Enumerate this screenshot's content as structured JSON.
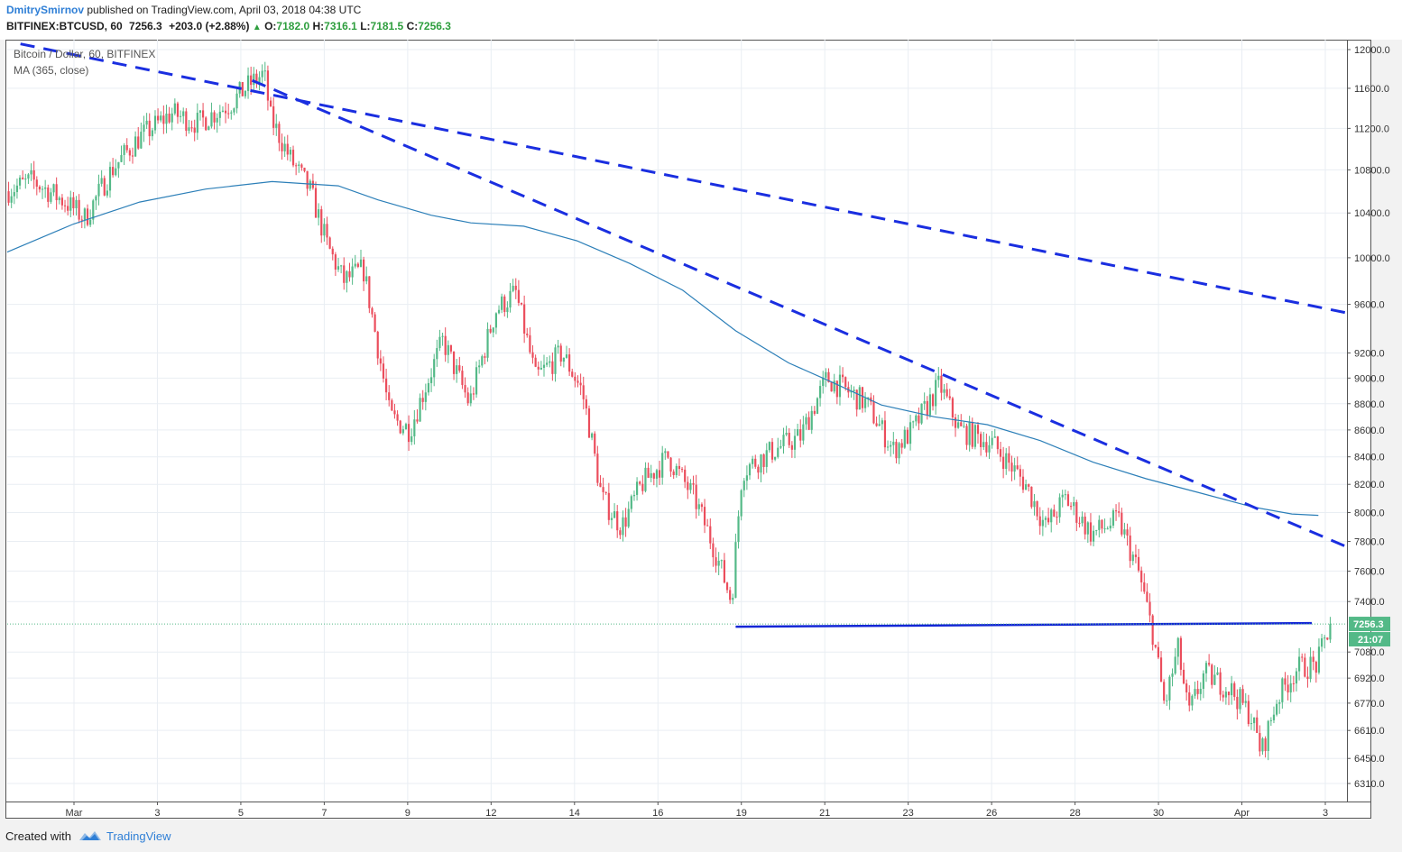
{
  "header": {
    "author": "DmitrySmirnov",
    "published": "published on TradingView.com, April 03, 2018 04:38 UTC",
    "symbol": "BITFINEX:BTCUSD, 60",
    "last": "7256.3",
    "change_arrow": "▲",
    "change": "+203.0 (+2.88%)",
    "o_label": "O:",
    "o": "7182.0",
    "h_label": "H:",
    "h": "7316.1",
    "l_label": "L:",
    "l": "7181.5",
    "c_label": "C:",
    "c": "7256.3"
  },
  "footer": {
    "created": "Created with",
    "brand": "TradingView"
  },
  "colors": {
    "up": "#53b987",
    "down": "#eb4d5c",
    "ma": "#2c7fb8",
    "trend": "#1a2ee0",
    "support": "#1226d6",
    "price_label": "#53b987"
  },
  "chart_data": {
    "type": "candlestick",
    "title": "Bitcoin / Dollar, 60, BITFINEX",
    "indicator": "MA (365, close)",
    "x_labels": [
      "Mar",
      "3",
      "5",
      "7",
      "9",
      "12",
      "14",
      "16",
      "19",
      "21",
      "23",
      "26",
      "28",
      "30",
      "Apr",
      "3"
    ],
    "y_ticks": [
      "12000.0",
      "11600.0",
      "11200.0",
      "10800.0",
      "10400.0",
      "10000.0",
      "9600.0",
      "9200.0",
      "9000.0",
      "8800.0",
      "8600.0",
      "8400.0",
      "8200.0",
      "8000.0",
      "7800.0",
      "7600.0",
      "7400.0",
      "7080.0",
      "6920.0",
      "6770.0",
      "6610.0",
      "6450.0",
      "6310.0"
    ],
    "scale": "log",
    "y_range": [
      6250,
      12200
    ],
    "last_price": "7256.3",
    "countdown": "21:07",
    "price_path": [
      [
        0,
        10600
      ],
      [
        0.02,
        10700
      ],
      [
        0.045,
        10500
      ],
      [
        0.06,
        10350
      ],
      [
        0.08,
        10800
      ],
      [
        0.1,
        11100
      ],
      [
        0.125,
        11350
      ],
      [
        0.145,
        11250
      ],
      [
        0.17,
        11450
      ],
      [
        0.185,
        11650
      ],
      [
        0.195,
        11750
      ],
      [
        0.2,
        11300
      ],
      [
        0.215,
        10900
      ],
      [
        0.23,
        10600
      ],
      [
        0.243,
        10100
      ],
      [
        0.255,
        9800
      ],
      [
        0.27,
        9900
      ],
      [
        0.28,
        9300
      ],
      [
        0.29,
        8700
      ],
      [
        0.305,
        8600
      ],
      [
        0.33,
        9300
      ],
      [
        0.35,
        8800
      ],
      [
        0.37,
        9550
      ],
      [
        0.385,
        9700
      ],
      [
        0.4,
        9000
      ],
      [
        0.42,
        9200
      ],
      [
        0.435,
        8900
      ],
      [
        0.44,
        8650
      ],
      [
        0.45,
        8100
      ],
      [
        0.465,
        7900
      ],
      [
        0.48,
        8200
      ],
      [
        0.5,
        8400
      ],
      [
        0.52,
        8100
      ],
      [
        0.535,
        7750
      ],
      [
        0.548,
        7400
      ],
      [
        0.556,
        8300
      ],
      [
        0.58,
        8450
      ],
      [
        0.6,
        8550
      ],
      [
        0.62,
        9000
      ],
      [
        0.65,
        8800
      ],
      [
        0.67,
        8450
      ],
      [
        0.685,
        8600
      ],
      [
        0.705,
        8950
      ],
      [
        0.72,
        8600
      ],
      [
        0.745,
        8500
      ],
      [
        0.77,
        8200
      ],
      [
        0.785,
        7900
      ],
      [
        0.8,
        8100
      ],
      [
        0.82,
        7850
      ],
      [
        0.84,
        7950
      ],
      [
        0.855,
        7600
      ],
      [
        0.866,
        7200
      ],
      [
        0.875,
        6750
      ],
      [
        0.885,
        7100
      ],
      [
        0.893,
        6700
      ],
      [
        0.905,
        6950
      ],
      [
        0.925,
        6850
      ],
      [
        0.94,
        6700
      ],
      [
        0.948,
        6480
      ],
      [
        0.96,
        6800
      ],
      [
        0.975,
        6980
      ],
      [
        0.99,
        7000
      ],
      [
        1.0,
        7256
      ]
    ],
    "ma_path": [
      [
        0,
        10050
      ],
      [
        0.05,
        10300
      ],
      [
        0.1,
        10500
      ],
      [
        0.15,
        10620
      ],
      [
        0.2,
        10690
      ],
      [
        0.25,
        10650
      ],
      [
        0.28,
        10520
      ],
      [
        0.32,
        10380
      ],
      [
        0.35,
        10310
      ],
      [
        0.39,
        10280
      ],
      [
        0.43,
        10150
      ],
      [
        0.47,
        9950
      ],
      [
        0.51,
        9720
      ],
      [
        0.55,
        9380
      ],
      [
        0.59,
        9120
      ],
      [
        0.62,
        8980
      ],
      [
        0.66,
        8790
      ],
      [
        0.7,
        8700
      ],
      [
        0.74,
        8640
      ],
      [
        0.78,
        8520
      ],
      [
        0.82,
        8360
      ],
      [
        0.86,
        8240
      ],
      [
        0.9,
        8140
      ],
      [
        0.94,
        8040
      ],
      [
        0.97,
        7990
      ],
      [
        0.99,
        7980
      ]
    ],
    "trendlines": [
      {
        "style": "dashed",
        "from": [
          0.01,
          12060
        ],
        "to": [
          1.0,
          9560
        ]
      },
      {
        "style": "dashed",
        "from": [
          0.185,
          11680
        ],
        "to": [
          1.0,
          7790
        ]
      }
    ],
    "support": {
      "level": 7256,
      "from": 0.55,
      "to": 0.985
    }
  }
}
